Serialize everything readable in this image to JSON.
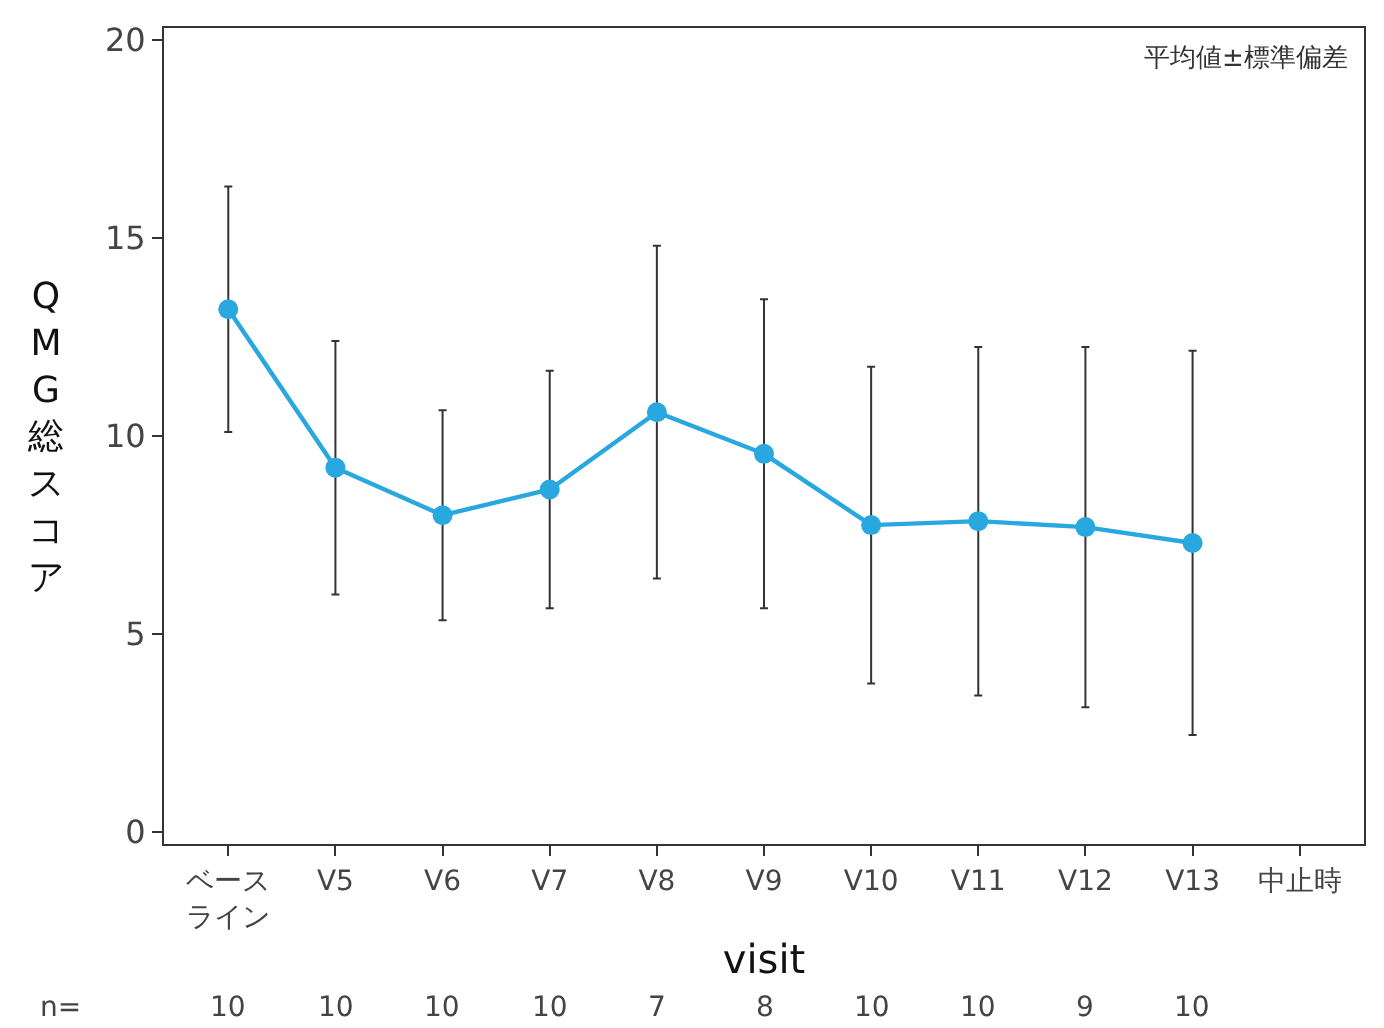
{
  "chart_data": {
    "type": "line",
    "categories": [
      "ベースライン",
      "V5",
      "V6",
      "V7",
      "V8",
      "V9",
      "V10",
      "V11",
      "V12",
      "V13",
      "中止時"
    ],
    "series": [
      {
        "color": "#29a8e0",
        "values": [
          13.2,
          9.2,
          8.0,
          8.65,
          10.6,
          9.55,
          7.75,
          7.85,
          7.7,
          7.3,
          null
        ],
        "errors": [
          3.1,
          3.2,
          2.65,
          3.0,
          4.2,
          3.9,
          4.0,
          4.4,
          4.55,
          4.85,
          null
        ]
      }
    ],
    "xlabel": "visit",
    "ylabel": "QMG総スコア",
    "ylim": [
      -0.3,
      20.3
    ],
    "yticks": [
      0,
      5,
      10,
      15,
      20
    ],
    "annotations": [
      "平均値±標準偏差",
      "n=",
      "10",
      "10",
      "10",
      "10",
      "7",
      "8",
      "10",
      "10",
      "9",
      "10"
    ],
    "marker": "circle",
    "line_style": "solid"
  }
}
